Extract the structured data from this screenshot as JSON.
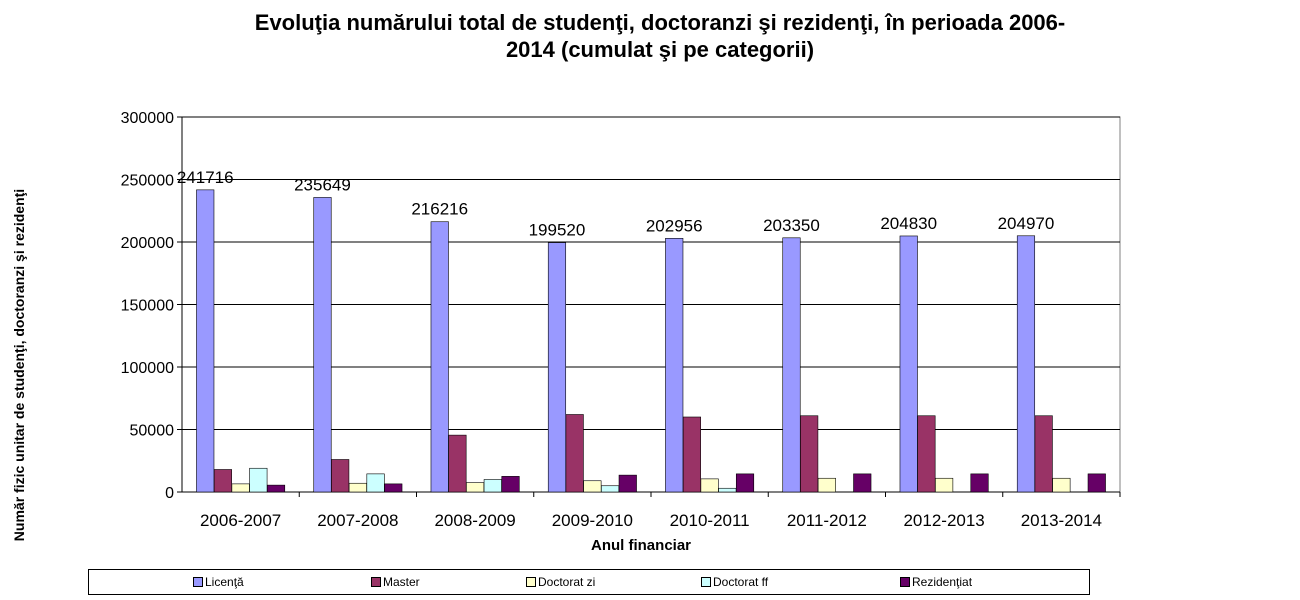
{
  "chart_data": {
    "type": "bar",
    "title": [
      "Evoluţia numărului total de studenţi, doctoranzi şi rezidenţi, în perioada 2006-",
      "2014 (cumulat şi pe categorii)"
    ],
    "xlabel": "Anul financiar",
    "ylabel": "Număr fizic unitar de studenţi, doctoranzi şi rezidenţi",
    "ylim": [
      0,
      300000
    ],
    "yticks": [
      "0",
      "50000",
      "100000",
      "150000",
      "200000",
      "250000",
      "300000"
    ],
    "grid": true,
    "legend_position": "bottom",
    "categories": [
      "2006-2007",
      "2007-2008",
      "2008-2009",
      "2009-2010",
      "2010-2011",
      "2011-2012",
      "2012-2013",
      "2013-2014"
    ],
    "series": [
      {
        "name": "Licenţă",
        "color": "#9999ff",
        "values": [
          241716,
          235649,
          216216,
          199520,
          202956,
          203350,
          204830,
          204970
        ]
      },
      {
        "name": "Master",
        "color": "#993366",
        "values": [
          18000,
          26000,
          45500,
          62000,
          60000,
          61000,
          61000,
          61000
        ]
      },
      {
        "name": "Doctorat zi",
        "color": "#ffffcc",
        "values": [
          6500,
          7000,
          7500,
          9000,
          10500,
          11000,
          11000,
          11000
        ]
      },
      {
        "name": "Doctorat ff",
        "color": "#ccffff",
        "values": [
          19000,
          14500,
          10000,
          5000,
          3000,
          0,
          0,
          0
        ]
      },
      {
        "name": "Rezidenţiat",
        "color": "#660066",
        "values": [
          5500,
          6500,
          12500,
          13500,
          14500,
          14500,
          14500,
          14500
        ]
      }
    ],
    "data_labels": [
      "241716",
      "235649",
      "216216",
      "199520",
      "202956",
      "203350",
      "204830",
      "204970"
    ]
  }
}
